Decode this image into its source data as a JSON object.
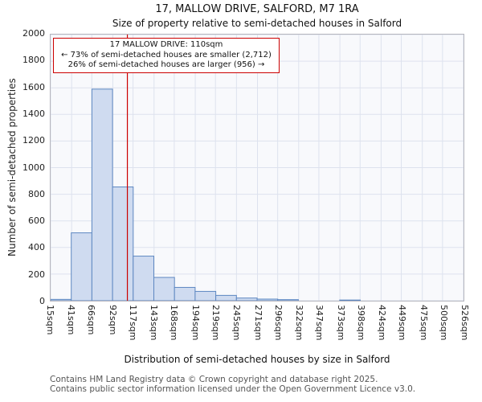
{
  "page": {
    "title": "17, MALLOW DRIVE, SALFORD, M7 1RA",
    "subtitle": "Size of property relative to semi-detached houses in Salford"
  },
  "chart_data": {
    "type": "bar",
    "title": "17, MALLOW DRIVE, SALFORD, M7 1RA",
    "subtitle": "Size of property relative to semi-detached houses in Salford",
    "xlabel": "Distribution of semi-detached houses by size in Salford",
    "ylabel": "Number of semi-detached properties",
    "xlim": [
      15,
      526
    ],
    "ylim": [
      0,
      2000
    ],
    "grid": true,
    "legend": null,
    "x_tick_values": [
      15,
      41,
      66,
      92,
      117,
      143,
      168,
      194,
      219,
      245,
      271,
      296,
      322,
      347,
      373,
      398,
      424,
      449,
      475,
      500,
      526
    ],
    "x_tick_labels": [
      "15sqm",
      "41sqm",
      "66sqm",
      "92sqm",
      "117sqm",
      "143sqm",
      "168sqm",
      "194sqm",
      "219sqm",
      "245sqm",
      "271sqm",
      "296sqm",
      "322sqm",
      "347sqm",
      "373sqm",
      "398sqm",
      "424sqm",
      "449sqm",
      "475sqm",
      "500sqm",
      "526sqm"
    ],
    "y_ticks": [
      0,
      200,
      400,
      600,
      800,
      1000,
      1200,
      1400,
      1600,
      1800,
      2000
    ],
    "bin_starts": [
      15,
      41,
      66,
      92,
      117,
      143,
      168,
      194,
      219,
      245,
      271,
      296,
      322,
      347,
      373,
      398,
      424,
      449,
      475,
      500
    ],
    "values": [
      10,
      510,
      1590,
      855,
      335,
      175,
      100,
      70,
      40,
      20,
      12,
      8,
      0,
      0,
      5,
      0,
      0,
      0,
      0,
      0
    ],
    "bar_fill": "#cfdbf0",
    "bar_edge": "#5d87c1",
    "marker": {
      "x": 110,
      "color": "#cc0000"
    },
    "annotation": {
      "line1": "17 MALLOW DRIVE: 110sqm",
      "line2": "← 73% of semi-detached houses are smaller (2,712)",
      "line3": "26% of semi-detached houses are larger (956) →",
      "border_color": "#cc0000",
      "smaller_count": "2,712",
      "smaller_pct": "73%",
      "larger_count": "956",
      "larger_pct": "26%"
    }
  },
  "footer": {
    "line1": "Contains HM Land Registry data © Crown copyright and database right 2025.",
    "line2": "Contains public sector information licensed under the Open Government Licence v3.0."
  }
}
